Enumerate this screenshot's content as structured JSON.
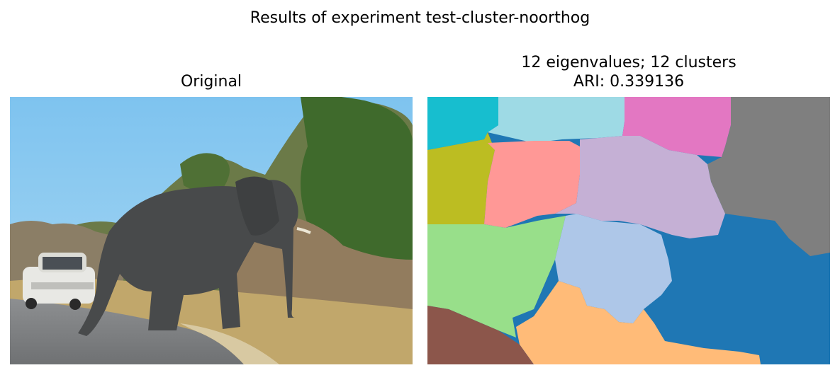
{
  "figure": {
    "suptitle": "Results of experiment test-cluster-noorthog"
  },
  "left_panel": {
    "title": "Original"
  },
  "right_panel": {
    "title_line1": "12 eigenvalues; 12 clusters",
    "title_line2": "ARI: 0.339136"
  },
  "segmentation": {
    "cluster_count": 12,
    "ari": 0.339136,
    "colors": [
      "#17becf",
      "#9edae5",
      "#e377c2",
      "#7f7f7f",
      "#bcbd22",
      "#ff9896",
      "#c5b0d5",
      "#98df8a",
      "#aec7e8",
      "#1f77b4",
      "#ffbb78",
      "#8c564b"
    ]
  }
}
